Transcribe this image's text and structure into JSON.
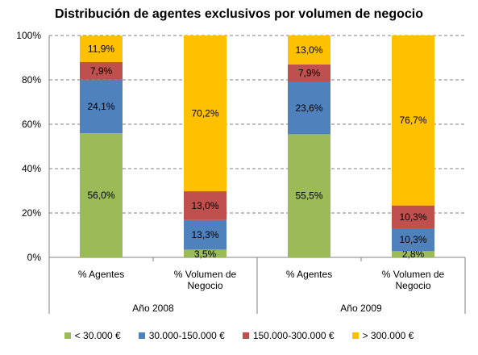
{
  "chart_data": {
    "type": "bar",
    "stacked": true,
    "title": "Distribución de agentes exclusivos por volumen de negocio",
    "ylim": [
      0,
      100
    ],
    "yticks": [
      "0%",
      "20%",
      "40%",
      "60%",
      "80%",
      "100%"
    ],
    "grid": true,
    "legend_position": "bottom",
    "groups": [
      {
        "label": "Año 2008",
        "categories": [
          [
            "% Agentes"
          ],
          [
            "% Volumen de",
            "Negocio"
          ]
        ]
      },
      {
        "label": "Año 2009",
        "categories": [
          [
            "% Agentes"
          ],
          [
            "% Volumen de",
            "Negocio"
          ]
        ]
      }
    ],
    "categories": [
      "% Agentes",
      "% Volumen de Negocio",
      "% Agentes",
      "% Volumen de Negocio"
    ],
    "series": [
      {
        "name": "< 30.000 €",
        "color": "#9bbb59",
        "values": [
          56.0,
          3.5,
          55.5,
          2.8
        ],
        "labels": [
          "56,0%",
          "3,5%",
          "55,5%",
          "2,8%"
        ]
      },
      {
        "name": "30.000-150.000  €",
        "color": "#4f81bd",
        "values": [
          24.1,
          13.3,
          23.6,
          10.3
        ],
        "labels": [
          "24,1%",
          "13,3%",
          "23,6%",
          "10,3%"
        ]
      },
      {
        "name": "150.000-300.000  €",
        "color": "#c0504d",
        "values": [
          7.9,
          13.0,
          7.9,
          10.3
        ],
        "labels": [
          "7,9%",
          "13,0%",
          "7,9%",
          "10,3%"
        ]
      },
      {
        "name": "> 300.000 €",
        "color": "#ffc000",
        "values": [
          11.9,
          70.2,
          13.0,
          76.7
        ],
        "labels": [
          "11,9%",
          "70,2%",
          "13,0%",
          "76,7%"
        ]
      }
    ]
  }
}
